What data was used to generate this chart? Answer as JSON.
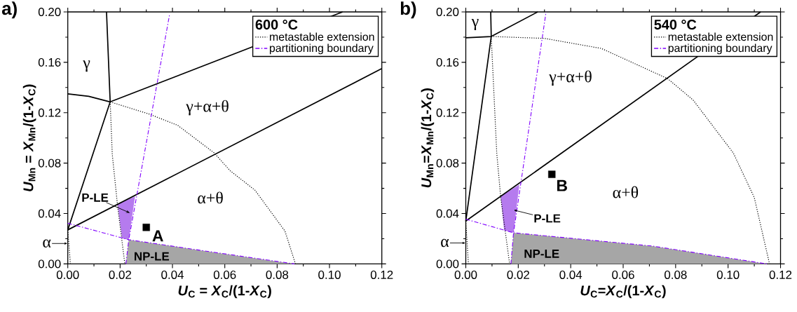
{
  "chart_data": [
    {
      "type": "line",
      "title": "a)",
      "xlabel": "*U*$_{C}$ = *X*$_{C}$/(1-*X*$_{C}$)",
      "ylabel": "*U*$_{Mn}$ = *X*$_{Mn}$/(1-*X*$_{C}$)",
      "legend_title": "600 °C",
      "legend": "top right",
      "xlim": [
        0,
        0.12
      ],
      "ylim": [
        0,
        0.2
      ],
      "xticks": [
        {
          "value": 0,
          "label": "0.00"
        },
        {
          "value": 0.02,
          "label": "0.02"
        },
        {
          "value": 0.04,
          "label": "0.04"
        },
        {
          "value": 0.06,
          "label": "0.06"
        },
        {
          "value": 0.08,
          "label": "0.08"
        },
        {
          "value": 0.1,
          "label": "0.10"
        },
        {
          "value": 0.12,
          "label": "0.12"
        }
      ],
      "yticks": [
        {
          "value": 0,
          "label": "0.00"
        },
        {
          "value": 0.04,
          "label": "0.04"
        },
        {
          "value": 0.08,
          "label": "0.08"
        },
        {
          "value": 0.12,
          "label": "0.12"
        },
        {
          "value": 0.16,
          "label": "0.16"
        },
        {
          "value": 0.2,
          "label": "0.20"
        }
      ],
      "series": [
        {
          "type": "area",
          "color": "#b57bee",
          "x": [
            0.019,
            0.0257,
            0.0233,
            0.0207
          ],
          "values": [
            0.0475,
            0.0535,
            0.0192,
            0.0202
          ]
        },
        {
          "type": "area",
          "color": "#a6a6a6",
          "x": [
            0.0222,
            0.0233,
            0.05,
            0.0866
          ],
          "values": [
            0,
            0.0192,
            0.011,
            0
          ]
        },
        {
          "color": "#000000",
          "line_style": "solid",
          "x": [
            0.0148,
            0.0162,
            0
          ],
          "values": [
            0.2,
            0.1286,
            0.027
          ]
        },
        {
          "color": "#000000",
          "line_style": "solid",
          "x": [
            0,
            0.008,
            0.0162
          ],
          "values": [
            0.135,
            0.133,
            0.1286
          ]
        },
        {
          "color": "#000000",
          "line_style": "solid",
          "x": [
            0.0162,
            0.105
          ],
          "values": [
            0.1286,
            0.2
          ]
        },
        {
          "color": "#000000",
          "line_style": "solid",
          "x": [
            0,
            0.12
          ],
          "values": [
            0.027,
            0.155
          ]
        },
        {
          "name": "metastable extension",
          "color": "#000000",
          "line_style": "dotted",
          "x": [
            0.0162,
            0.031,
            0.042,
            0.056,
            0.062,
            0.0715,
            0.083,
            0.087
          ],
          "values": [
            0.1286,
            0.119,
            0.11,
            0.088,
            0.074,
            0.0586,
            0.026,
            0
          ]
        },
        {
          "color": "#000000",
          "line_style": "dotted",
          "x": [
            0.0162,
            0.017,
            0.019,
            0.0218
          ],
          "values": [
            0.1286,
            0.087,
            0.0465,
            0
          ]
        },
        {
          "color": "#000000",
          "line_style": "dotted",
          "x": [
            0,
            0.001
          ],
          "values": [
            0.027,
            0
          ]
        },
        {
          "name": "partitioning boundary",
          "color": "#8000ff",
          "line_style": "dashdot",
          "x": [
            0.0222,
            0.0233,
            0.0389
          ],
          "values": [
            0,
            0.0192,
            0.198
          ]
        },
        {
          "color": "#8000ff",
          "line_style": "dashdot",
          "x": [
            0,
            0.0233,
            0.05,
            0.0866
          ],
          "values": [
            0.0323,
            0.0192,
            0.011,
            0
          ]
        },
        {
          "type": "scatter",
          "name": "A",
          "color": "#000000",
          "marker": "square",
          "x": [
            0.03
          ],
          "values": [
            0.029
          ]
        }
      ],
      "annotations": [
        "γ",
        "γ+α+θ",
        "α+θ",
        {
          "text": "P-LE",
          "x": 0.0238,
          "y": 0.0404
        },
        {
          "text": "α",
          "x": 0,
          "y": 0.0162
        },
        "NP-LE"
      ]
    },
    {
      "type": "line",
      "title": "b)",
      "xlabel": "*U*$_{C}$=*X*$_{C}$/(1-*X*$_{C}$)",
      "ylabel": "*U*$_{Mn}$=*X*$_{Mn}$/(1-*X*$_{C}$)",
      "legend_title": "540 °C",
      "legend": "top right",
      "xlim": [
        0,
        0.12
      ],
      "ylim": [
        0,
        0.2
      ],
      "xticks": [
        {
          "value": 0,
          "label": "0.00"
        },
        {
          "value": 0.02,
          "label": "0.02"
        },
        {
          "value": 0.04,
          "label": "0.04"
        },
        {
          "value": 0.06,
          "label": "0.06"
        },
        {
          "value": 0.08,
          "label": "0.08"
        },
        {
          "value": 0.1,
          "label": "0.10"
        },
        {
          "value": 0.12,
          "label": "0.12"
        }
      ],
      "yticks": [
        {
          "value": 0,
          "label": "0.00"
        },
        {
          "value": 0.04,
          "label": "0.04"
        },
        {
          "value": 0.08,
          "label": "0.08"
        },
        {
          "value": 0.12,
          "label": "0.12"
        },
        {
          "value": 0.16,
          "label": "0.16"
        },
        {
          "value": 0.2,
          "label": "0.20"
        }
      ],
      "series": [
        {
          "type": "area",
          "color": "#b57bee",
          "x": [
            0.0133,
            0.0204,
            0.0182,
            0.0146
          ],
          "values": [
            0.0536,
            0.063,
            0.0247,
            0.0267
          ]
        },
        {
          "type": "area",
          "color": "#a6a6a6",
          "x": [
            0.0172,
            0.0182,
            0.0711,
            0.1148
          ],
          "values": [
            0,
            0.0247,
            0.0142,
            0
          ]
        },
        {
          "color": "#000000",
          "line_style": "solid",
          "x": [
            0.0095,
            0.0097,
            0
          ],
          "values": [
            0.2,
            0.1805,
            0.034
          ]
        },
        {
          "color": "#000000",
          "line_style": "solid",
          "x": [
            0,
            0.0097,
            0.0274
          ],
          "values": [
            0.1795,
            0.1805,
            0.2
          ]
        },
        {
          "color": "#000000",
          "line_style": "solid",
          "x": [
            0,
            0.1124
          ],
          "values": [
            0.034,
            0.2
          ]
        },
        {
          "name": "metastable extension",
          "color": "#000000",
          "line_style": "dotted",
          "x": [
            0.0097,
            0.03,
            0.0517,
            0.077,
            0.0867,
            0.102,
            0.11,
            0.1158
          ],
          "values": [
            0.1805,
            0.179,
            0.171,
            0.147,
            0.13,
            0.088,
            0.0526,
            0
          ]
        },
        {
          "color": "#000000",
          "line_style": "dotted",
          "x": [
            0.0097,
            0.0118,
            0.0133,
            0.0167
          ],
          "values": [
            0.1805,
            0.088,
            0.053,
            0
          ]
        },
        {
          "color": "#000000",
          "line_style": "dotted",
          "x": [
            0,
            0.001
          ],
          "values": [
            0.034,
            0
          ]
        },
        {
          "name": "partitioning boundary",
          "color": "#8000ff",
          "line_style": "dashdot",
          "x": [
            0.0172,
            0.0182,
            0.0306
          ],
          "values": [
            0,
            0.0247,
            0.2
          ]
        },
        {
          "color": "#8000ff",
          "line_style": "dashdot",
          "x": [
            0,
            0.0182,
            0.0711,
            0.1148
          ],
          "values": [
            0.0355,
            0.0247,
            0.0142,
            0
          ]
        },
        {
          "type": "scatter",
          "name": "B",
          "color": "#000000",
          "marker": "square",
          "x": [
            0.0328
          ],
          "values": [
            0.0711
          ]
        }
      ],
      "annotations": [
        "γ",
        "γ+α+θ",
        "α+θ",
        {
          "text": "P-LE",
          "x": 0.0182,
          "y": 0.0428
        },
        {
          "text": "α",
          "x": 0,
          "y": 0.0166
        },
        "NP-LE"
      ]
    }
  ]
}
